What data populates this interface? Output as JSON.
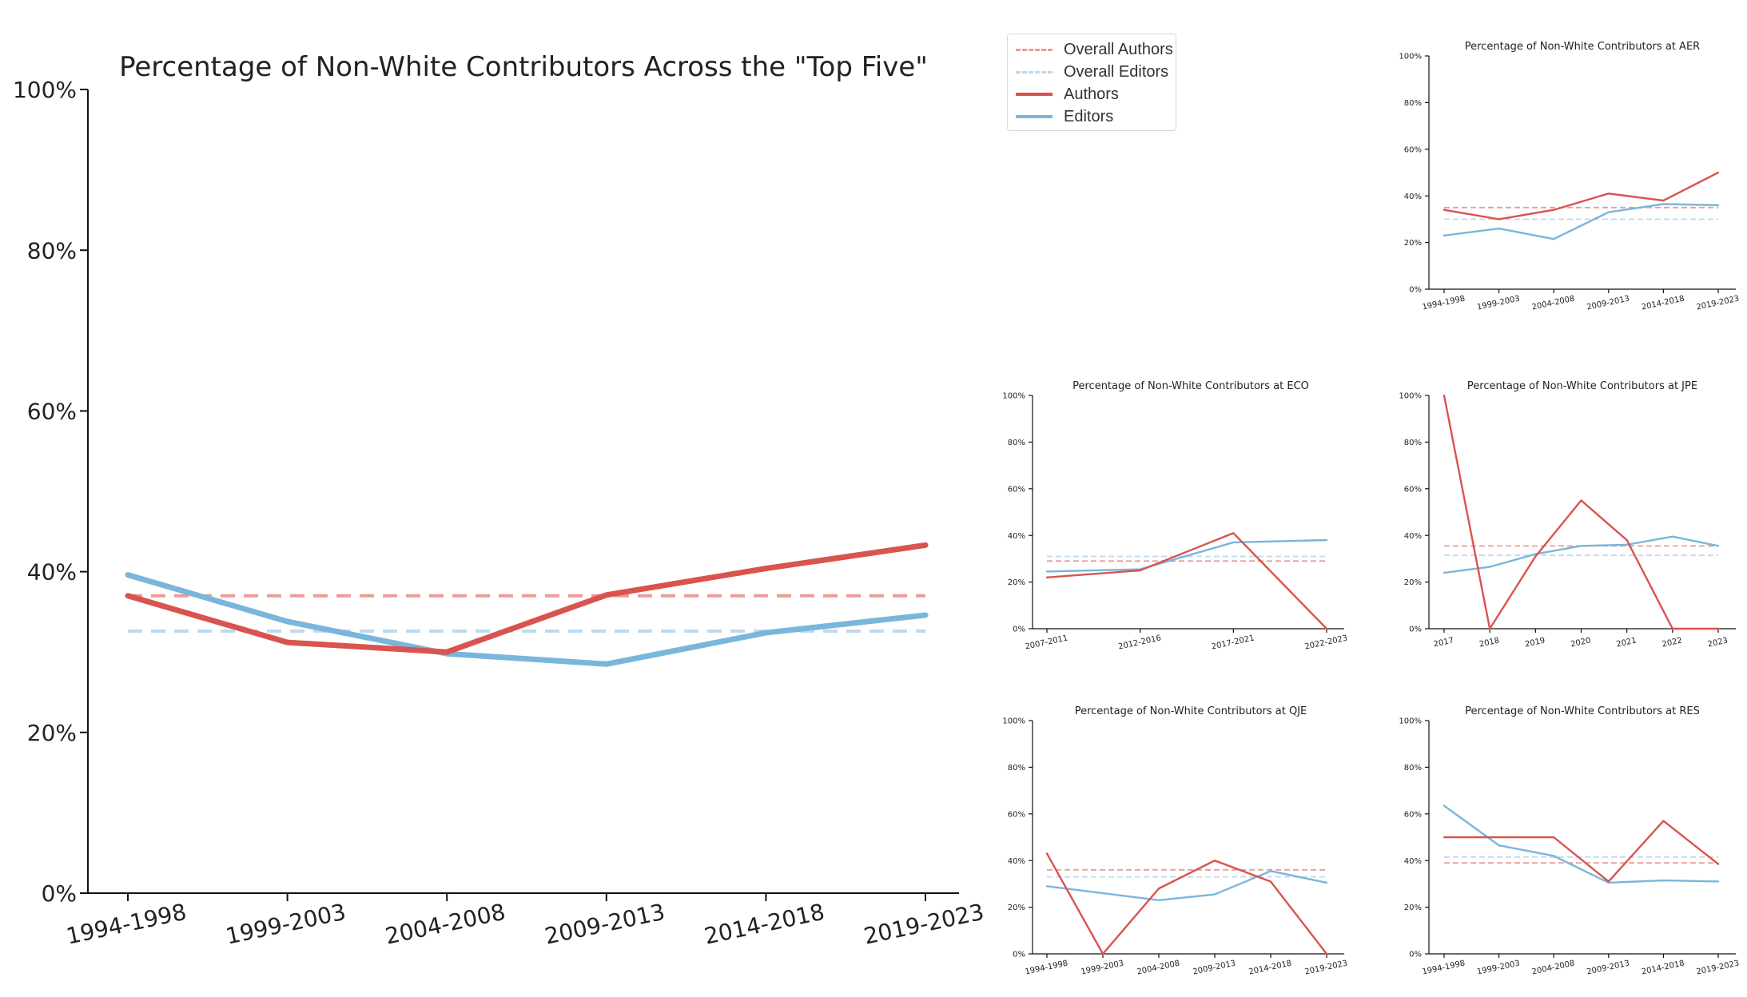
{
  "colors": {
    "authors": "#d9534f",
    "editors": "#7ab6db",
    "overall_authors": "#eb9b98",
    "overall_editors": "#bfd9ed",
    "axis": "#111111"
  },
  "legend": [
    {
      "label": "Overall Authors",
      "style": "dashed",
      "color": "#eb9b98"
    },
    {
      "label": "Overall Editors",
      "style": "dashed",
      "color": "#bfd9ed"
    },
    {
      "label": "Authors",
      "style": "solid",
      "color": "#d9534f"
    },
    {
      "label": "Editors",
      "style": "solid",
      "color": "#7ab6db"
    }
  ],
  "chart_data": [
    {
      "id": "main",
      "type": "line",
      "title": "Percentage of Non-White Contributors Across the \"Top Five\"",
      "categories": [
        "1994-1998",
        "1999-2003",
        "2004-2008",
        "2009-2013",
        "2014-2018",
        "2019-2023"
      ],
      "ylim": [
        0,
        100
      ],
      "yticks": [
        "0%",
        "20%",
        "40%",
        "60%",
        "80%",
        "100%"
      ],
      "series": [
        {
          "name": "Authors",
          "values": [
            37,
            31.2,
            30,
            37.1,
            40.4,
            43.3
          ]
        },
        {
          "name": "Editors",
          "values": [
            39.6,
            33.8,
            29.8,
            28.5,
            32.4,
            34.6
          ]
        }
      ],
      "reference_lines": [
        {
          "name": "Overall Authors",
          "value": 37
        },
        {
          "name": "Overall Editors",
          "value": 32.6
        }
      ]
    },
    {
      "id": "aer",
      "type": "line",
      "title": "Percentage of Non-White Contributors at AER",
      "categories": [
        "1994-1998",
        "1999-2003",
        "2004-2008",
        "2009-2013",
        "2014-2018",
        "2019-2023"
      ],
      "ylim": [
        0,
        100
      ],
      "yticks": [
        "0%",
        "20%",
        "40%",
        "60%",
        "80%",
        "100%"
      ],
      "series": [
        {
          "name": "Authors",
          "values": [
            34,
            30,
            34,
            41,
            38,
            50
          ]
        },
        {
          "name": "Editors",
          "values": [
            23,
            26,
            21.5,
            33,
            36.5,
            36
          ]
        }
      ],
      "reference_lines": [
        {
          "name": "Overall Authors",
          "value": 35
        },
        {
          "name": "Overall Editors",
          "value": 30
        }
      ]
    },
    {
      "id": "eco",
      "type": "line",
      "title": "Percentage of Non-White Contributors at ECO",
      "categories": [
        "2007-2011",
        "2012-2016",
        "2017-2021",
        "2022-2023"
      ],
      "ylim": [
        0,
        100
      ],
      "yticks": [
        "0%",
        "20%",
        "40%",
        "60%",
        "80%",
        "100%"
      ],
      "series": [
        {
          "name": "Authors",
          "values": [
            22,
            25,
            41,
            0
          ]
        },
        {
          "name": "Editors",
          "values": [
            24.5,
            25.5,
            37,
            38
          ]
        }
      ],
      "reference_lines": [
        {
          "name": "Overall Authors",
          "value": 29
        },
        {
          "name": "Overall Editors",
          "value": 31
        }
      ]
    },
    {
      "id": "jpe",
      "type": "line",
      "title": "Percentage of Non-White Contributors at JPE",
      "categories": [
        "2017",
        "2018",
        "2019",
        "2020",
        "2021",
        "2022",
        "2023"
      ],
      "ylim": [
        0,
        100
      ],
      "yticks": [
        "0%",
        "20%",
        "40%",
        "60%",
        "80%",
        "100%"
      ],
      "series": [
        {
          "name": "Authors",
          "values": [
            100,
            0,
            31,
            55,
            38,
            0,
            0
          ]
        },
        {
          "name": "Editors",
          "values": [
            24,
            26.5,
            32,
            35.5,
            36,
            39.5,
            35.5
          ]
        }
      ],
      "reference_lines": [
        {
          "name": "Overall Authors",
          "value": 35.5
        },
        {
          "name": "Overall Editors",
          "value": 31.5
        }
      ]
    },
    {
      "id": "qje",
      "type": "line",
      "title": "Percentage of Non-White Contributors at QJE",
      "categories": [
        "1994-1998",
        "1999-2003",
        "2004-2008",
        "2009-2013",
        "2014-2018",
        "2019-2023"
      ],
      "ylim": [
        0,
        100
      ],
      "yticks": [
        "0%",
        "20%",
        "40%",
        "60%",
        "80%",
        "100%"
      ],
      "series": [
        {
          "name": "Authors",
          "values": [
            43,
            0,
            28,
            40,
            31,
            0
          ]
        },
        {
          "name": "Editors",
          "values": [
            29,
            26,
            23,
            25.5,
            35.5,
            30.5
          ]
        }
      ],
      "reference_lines": [
        {
          "name": "Overall Authors",
          "value": 36
        },
        {
          "name": "Overall Editors",
          "value": 33
        }
      ]
    },
    {
      "id": "res",
      "type": "line",
      "title": "Percentage of Non-White Contributors at RES",
      "categories": [
        "1994-1998",
        "1999-2003",
        "2004-2008",
        "2009-2013",
        "2014-2018",
        "2019-2023"
      ],
      "ylim": [
        0,
        100
      ],
      "yticks": [
        "0%",
        "20%",
        "40%",
        "60%",
        "80%",
        "100%"
      ],
      "series": [
        {
          "name": "Authors",
          "values": [
            50,
            50,
            50,
            31,
            57,
            38.5
          ]
        },
        {
          "name": "Editors",
          "values": [
            63.5,
            46.5,
            42,
            30.5,
            31.5,
            31
          ]
        }
      ],
      "reference_lines": [
        {
          "name": "Overall Authors",
          "value": 39
        },
        {
          "name": "Overall Editors",
          "value": 41.5
        }
      ]
    }
  ]
}
